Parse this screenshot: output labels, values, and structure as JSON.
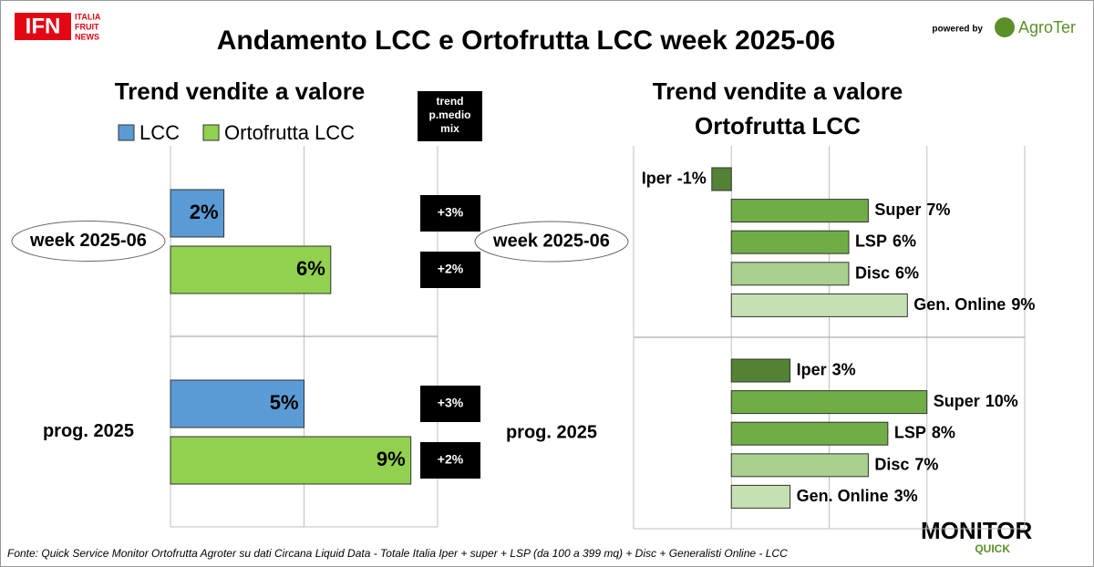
{
  "title": "Andamento LCC e Ortofrutta LCC week 2025-06",
  "logos": {
    "ifn": "IFN",
    "ifn_lines": [
      "ITALIA",
      "FRUIT",
      "NEWS"
    ],
    "powered_by": "powered by",
    "agroter": "AgroTer",
    "monitor": "MONITOR",
    "quick": "QUICK"
  },
  "source": "Fonte: Quick Service Monitor Ortofrutta Agroter su dati Circana Liquid Data - Totale Italia Iper + super + LSP (da 100 a 399 mq) + Disc + Generalisti Online - LCC",
  "chart_data": [
    {
      "type": "bar",
      "orientation": "horizontal",
      "title": "Trend vendite a valore",
      "categories": [
        "week 2025-06",
        "prog. 2025"
      ],
      "highlight_category": 0,
      "series": [
        {
          "name": "LCC",
          "color": "#5b9bd5",
          "values": [
            2,
            5
          ],
          "value_labels": [
            "2%",
            "5%"
          ]
        },
        {
          "name": "Ortofrutta LCC",
          "color": "#92d050",
          "values": [
            6,
            9
          ],
          "value_labels": [
            "6%",
            "9%"
          ]
        }
      ],
      "xlim": [
        0,
        10
      ],
      "xticks": [
        0,
        5,
        10
      ],
      "tick_labels": false,
      "grid": true,
      "legend": "top",
      "trend_header": [
        "trend",
        "p.medio",
        "mix"
      ],
      "trend_labels": [
        [
          "+3%",
          "+2%"
        ],
        [
          "+3%",
          "+2%"
        ]
      ]
    },
    {
      "type": "bar",
      "orientation": "horizontal",
      "title": "Trend vendite a valore",
      "subtitle": "Ortofrutta LCC",
      "categories": [
        "week 2025-06",
        "prog. 2025"
      ],
      "highlight_category": 0,
      "series": [
        {
          "name": "Iper",
          "color": "#548235",
          "values": [
            -1,
            3
          ],
          "value_labels": [
            "-1%",
            "3%"
          ]
        },
        {
          "name": "Super",
          "color": "#70ad47",
          "values": [
            7,
            10
          ],
          "value_labels": [
            "7%",
            "10%"
          ]
        },
        {
          "name": "LSP",
          "color": "#70ad47",
          "values": [
            6,
            8
          ],
          "value_labels": [
            "6%",
            "8%"
          ]
        },
        {
          "name": "Disc",
          "color": "#a9d08e",
          "values": [
            6,
            7
          ],
          "value_labels": [
            "6%",
            "7%"
          ]
        },
        {
          "name": "Gen. Online",
          "color": "#c6e0b4",
          "values": [
            9,
            3
          ],
          "value_labels": [
            "9%",
            "3%"
          ]
        }
      ],
      "xlim": [
        -5,
        15
      ],
      "xticks": [
        -5,
        0,
        5,
        10,
        15
      ],
      "tick_labels": false,
      "grid": true
    }
  ]
}
